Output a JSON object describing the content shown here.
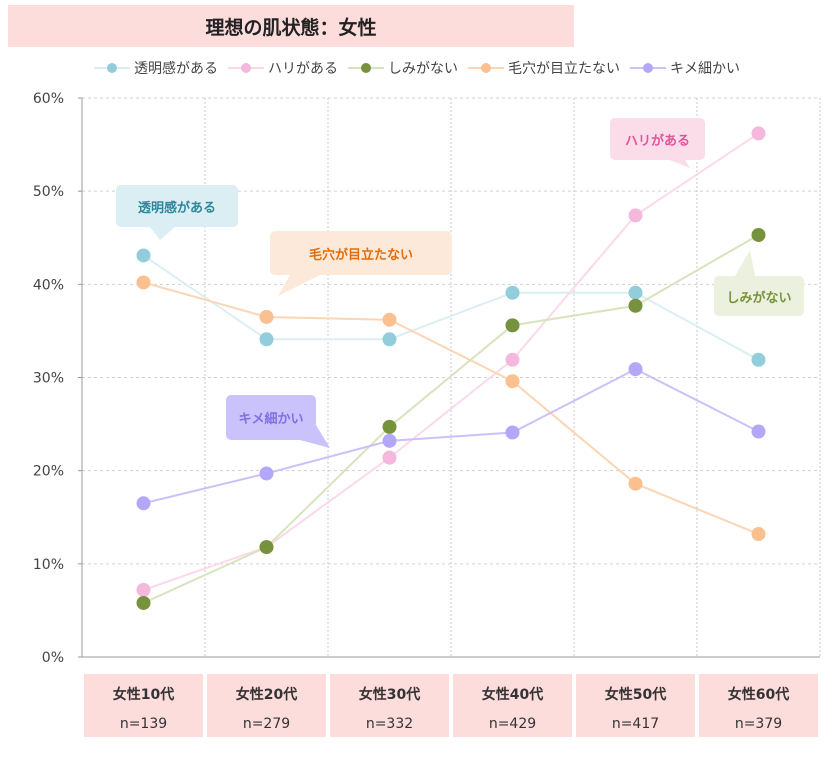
{
  "chart_data": {
    "type": "line",
    "title": "理想の肌状態：女性",
    "categories": [
      "女性10代",
      "女性20代",
      "女性30代",
      "女性40代",
      "女性50代",
      "女性60代"
    ],
    "sample_sizes": [
      "n=139",
      "n=279",
      "n=332",
      "n=429",
      "n=417",
      "n=379"
    ],
    "yticks": [
      "0%",
      "10%",
      "20%",
      "30%",
      "40%",
      "50%",
      "60%"
    ],
    "ylim": [
      0,
      60
    ],
    "grid": true,
    "legend": "top",
    "series": [
      {
        "name": "透明感がある",
        "values": [
          43.1,
          34.1,
          34.1,
          39.1,
          39.1,
          31.9
        ],
        "marker": "#92cddc",
        "line": "#dbeef3",
        "label_bg": "#dbeef3",
        "label_color": "#31859c"
      },
      {
        "name": "ハリがある",
        "values": [
          7.2,
          11.8,
          21.4,
          31.9,
          47.4,
          56.2
        ],
        "marker": "#f4b8dc",
        "line": "#fbd9ec",
        "label_bg": "#fbdce9",
        "label_color": "#e0559a"
      },
      {
        "name": "しみがない",
        "values": [
          5.8,
          11.8,
          24.7,
          35.6,
          37.7,
          45.3
        ],
        "marker": "#76923c",
        "line": "#d7e4bd",
        "label_bg": "#ebf1de",
        "label_color": "#76923c"
      },
      {
        "name": "毛穴が目立たない",
        "values": [
          40.2,
          36.5,
          36.2,
          29.6,
          18.6,
          13.2
        ],
        "marker": "#fac090",
        "line": "#fcd5b5",
        "label_bg": "#fde9d9",
        "label_color": "#e46c0a"
      },
      {
        "name": "キメ細かい",
        "values": [
          16.5,
          19.7,
          23.2,
          24.1,
          30.9,
          24.2
        ],
        "marker": "#b3a8f8",
        "line": "#ccc0fa",
        "label_bg": "#c9c2fb",
        "label_color": "#7f6fe0"
      }
    ]
  }
}
